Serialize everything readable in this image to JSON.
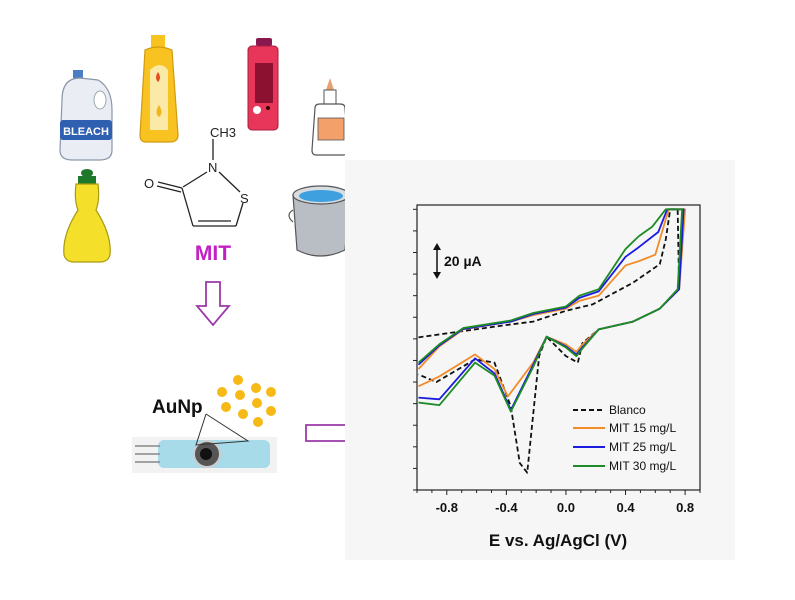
{
  "illustration": {
    "products": [
      "bleach-jug",
      "shampoo-bottle",
      "spray-bottle",
      "glue-bottle",
      "dish-soap-bottle",
      "paint-bucket"
    ],
    "bleach_label": "BLEACH",
    "molecule": {
      "ch3": "CH3",
      "n": "N",
      "s": "S",
      "o": "O",
      "name": "MIT"
    },
    "nanoparticle_label": "AuNp",
    "colors": {
      "mit": "#c21fc4",
      "arrow": "#9b3aa8",
      "gold": "#f6b916",
      "electrode": "#a7dbea"
    }
  },
  "chart_data": {
    "type": "line",
    "title": "",
    "xlabel": "E vs. Ag/AgCl (V)",
    "ylabel": "",
    "xlim": [
      -1.0,
      0.9
    ],
    "ylim": [
      0,
      132
    ],
    "y_units": "µA (relative)",
    "x_ticks": [
      "-0.8",
      "-0.4",
      "0.0",
      "0.4",
      "0.8"
    ],
    "x_tick_values": [
      -0.8,
      -0.4,
      0.0,
      0.4,
      0.8
    ],
    "scale_bar": {
      "label": "20 µA",
      "value": 20
    },
    "legend_position": "bottom-right",
    "series": [
      {
        "name": "Blanco",
        "color": "#111111",
        "dash": true,
        "x": [
          -0.99,
          -0.37,
          -0.22,
          0.0,
          0.18,
          0.45,
          0.63,
          0.67,
          0.7,
          0.75,
          0.76,
          0.63,
          0.45,
          0.22,
          0.11,
          0.08,
          0.0,
          -0.13,
          -0.18,
          -0.26,
          -0.31,
          -0.37,
          -0.48,
          -0.61,
          -0.87,
          -0.99
        ],
        "y": [
          70.7,
          76.7,
          78,
          83,
          86,
          96,
          104.6,
          116,
          130,
          130,
          93,
          84,
          78,
          74.4,
          68,
          59,
          62,
          71,
          62,
          8,
          12.5,
          38.6,
          59,
          60.5,
          50,
          53.5
        ]
      },
      {
        "name": "MIT 15 mg/L",
        "color": "#f28c28",
        "dash": false,
        "x": [
          -0.99,
          -0.85,
          -0.69,
          -0.37,
          -0.22,
          0.0,
          0.09,
          0.22,
          0.4,
          0.49,
          0.6,
          0.69,
          0.8,
          0.76,
          0.63,
          0.45,
          0.22,
          0.11,
          0.07,
          0.0,
          -0.13,
          -0.22,
          -0.39,
          -0.48,
          -0.61,
          -0.85,
          -0.99
        ],
        "y": [
          56,
          66.5,
          74.4,
          78,
          81,
          84,
          87.6,
          90,
          104,
          106,
          109,
          130,
          130,
          93,
          84,
          78,
          74.4,
          67.4,
          64,
          67.4,
          71,
          59,
          43.3,
          56,
          62.8,
          52.6,
          48
        ]
      },
      {
        "name": "MIT 25 mg/L",
        "color": "#1c1ce0",
        "dash": false,
        "x": [
          -0.99,
          -0.85,
          -0.69,
          -0.37,
          -0.22,
          0.0,
          0.09,
          0.22,
          0.4,
          0.49,
          0.62,
          0.68,
          0.79,
          0.76,
          0.63,
          0.45,
          0.22,
          0.11,
          0.07,
          0.0,
          -0.13,
          -0.22,
          -0.37,
          -0.48,
          -0.61,
          -0.85,
          -0.99
        ],
        "y": [
          58,
          67,
          74.6,
          78,
          81.5,
          84.5,
          89,
          92,
          108,
          112.5,
          119.5,
          130,
          130,
          93,
          84,
          78,
          74.4,
          66,
          62.8,
          66.5,
          71,
          58,
          37,
          54,
          61,
          42,
          42.8
        ]
      },
      {
        "name": "MIT 30 mg/L",
        "color": "#1e8c24",
        "dash": false,
        "x": [
          -0.99,
          -0.85,
          -0.69,
          -0.37,
          -0.22,
          0.0,
          0.09,
          0.22,
          0.4,
          0.49,
          0.58,
          0.67,
          0.78,
          0.75,
          0.63,
          0.45,
          0.22,
          0.11,
          0.07,
          0.0,
          -0.13,
          -0.22,
          -0.37,
          -0.48,
          -0.61,
          -0.85,
          -0.99
        ],
        "y": [
          59,
          67.5,
          75,
          78.5,
          82,
          85,
          90,
          93,
          111.6,
          117.6,
          122,
          130,
          130,
          93,
          84,
          78,
          74.4,
          65.5,
          62,
          66,
          71,
          57,
          36.3,
          53,
          59,
          39.3,
          40.5
        ]
      }
    ]
  }
}
